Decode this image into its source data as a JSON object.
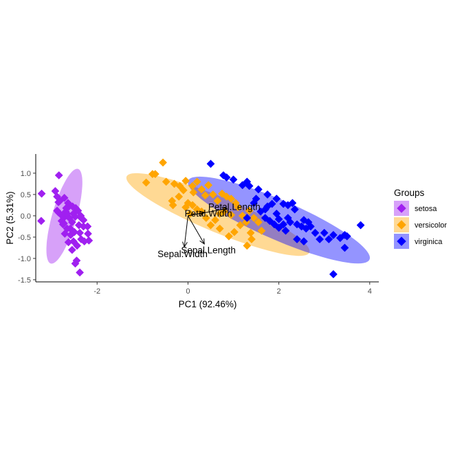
{
  "chart_data": {
    "type": "scatter",
    "subtype": "pca-biplot",
    "title": "",
    "xlabel": "PC1 (92.46%)",
    "ylabel": "PC2 (5.31%)",
    "xlim": [
      -3.35,
      4.2
    ],
    "ylim": [
      -1.55,
      1.45
    ],
    "xticks": [
      -2,
      0,
      2,
      4
    ],
    "xtick_labels": [
      "-2",
      "0",
      "2",
      "4"
    ],
    "yticks": [
      -1.5,
      -1.0,
      -0.5,
      0.0,
      0.5,
      1.0
    ],
    "ytick_labels": [
      "-1.5",
      "-1.0",
      "-0.5",
      "0.0",
      "0.5",
      "1.0"
    ],
    "grid": false,
    "legend": {
      "title": "Groups",
      "position": "right",
      "entries": [
        "setosa",
        "versicolor",
        "virginica"
      ]
    },
    "series": [
      {
        "name": "setosa",
        "color": "#A020F0",
        "ellipse": {
          "cx": -2.72,
          "cy": -0.01,
          "rx": 1.15,
          "ry": 0.27,
          "angle_deg": 75
        },
        "points": [
          [
            -2.84,
            0.95
          ],
          [
            -3.22,
            0.52
          ],
          [
            -3.23,
            -0.12
          ],
          [
            -2.92,
            0.58
          ],
          [
            -2.88,
            0.45
          ],
          [
            -2.82,
            0.35
          ],
          [
            -2.72,
            0.42
          ],
          [
            -2.62,
            0.22
          ],
          [
            -2.68,
            0.18
          ],
          [
            -2.88,
            0.12
          ],
          [
            -2.85,
            0.32
          ],
          [
            -2.78,
            -0.12
          ],
          [
            -2.75,
            -0.2
          ],
          [
            -2.69,
            0.1
          ],
          [
            -2.52,
            0.05
          ],
          [
            -2.48,
            -0.02
          ],
          [
            -2.72,
            -0.03
          ],
          [
            -2.61,
            -0.05
          ],
          [
            -2.55,
            -0.15
          ],
          [
            -2.42,
            0.12
          ],
          [
            -2.35,
            -0.05
          ],
          [
            -2.4,
            -0.22
          ],
          [
            -2.5,
            -0.38
          ],
          [
            -2.3,
            -0.25
          ],
          [
            -2.38,
            -0.4
          ],
          [
            -2.35,
            -0.55
          ],
          [
            -2.52,
            -0.6
          ],
          [
            -2.63,
            -0.62
          ],
          [
            -2.55,
            -0.8
          ],
          [
            -2.45,
            -1.05
          ],
          [
            -2.48,
            -1.12
          ],
          [
            -2.38,
            -1.33
          ],
          [
            -2.28,
            -0.6
          ],
          [
            -2.2,
            -0.42
          ],
          [
            -2.18,
            -0.58
          ],
          [
            -2.66,
            -0.3
          ],
          [
            -2.71,
            -0.42
          ],
          [
            -2.59,
            -0.3
          ],
          [
            -2.77,
            0.0
          ],
          [
            -2.47,
            0.18
          ],
          [
            -2.21,
            -0.25
          ],
          [
            -2.3,
            -0.1
          ],
          [
            -2.64,
            0.3
          ],
          [
            -2.85,
            0.08
          ],
          [
            -2.58,
            -0.45
          ],
          [
            -2.44,
            -0.7
          ],
          [
            -2.73,
            -0.18
          ],
          [
            -2.54,
            0.22
          ],
          [
            -2.66,
            0.05
          ],
          [
            -2.36,
            0.0
          ]
        ]
      },
      {
        "name": "versicolor",
        "color": "#FFA500",
        "ellipse": {
          "cx": 0.66,
          "cy": 0.03,
          "rx": 2.2,
          "ry": 0.41,
          "angle_deg": -24
        },
        "points": [
          [
            -0.55,
            1.25
          ],
          [
            -0.78,
            0.98
          ],
          [
            -0.72,
            0.98
          ],
          [
            -0.92,
            0.78
          ],
          [
            -0.48,
            0.8
          ],
          [
            -0.3,
            0.75
          ],
          [
            -0.05,
            0.82
          ],
          [
            -0.18,
            0.7
          ],
          [
            -0.1,
            0.6
          ],
          [
            0.1,
            0.7
          ],
          [
            0.2,
            0.8
          ],
          [
            0.12,
            0.55
          ],
          [
            0.3,
            0.62
          ],
          [
            0.45,
            0.72
          ],
          [
            0.55,
            0.5
          ],
          [
            0.38,
            0.48
          ],
          [
            0.65,
            0.35
          ],
          [
            0.75,
            0.52
          ],
          [
            0.85,
            0.45
          ],
          [
            0.95,
            0.4
          ],
          [
            1.05,
            0.3
          ],
          [
            1.1,
            0.2
          ],
          [
            0.8,
            0.1
          ],
          [
            0.7,
            0.05
          ],
          [
            0.95,
            0.02
          ],
          [
            1.2,
            0.0
          ],
          [
            1.35,
            0.12
          ],
          [
            1.28,
            -0.15
          ],
          [
            1.45,
            -0.05
          ],
          [
            1.55,
            -0.15
          ],
          [
            1.62,
            -0.35
          ],
          [
            1.38,
            -0.4
          ],
          [
            1.02,
            -0.38
          ],
          [
            1.3,
            -0.7
          ],
          [
            1.4,
            -0.55
          ],
          [
            0.9,
            -0.48
          ],
          [
            0.7,
            -0.3
          ],
          [
            0.5,
            -0.22
          ],
          [
            0.4,
            -0.05
          ],
          [
            0.3,
            0.1
          ],
          [
            0.2,
            0.15
          ],
          [
            0.1,
            0.25
          ],
          [
            0.05,
            0.05
          ],
          [
            -0.05,
            0.2
          ],
          [
            -0.35,
            0.35
          ],
          [
            -0.33,
            0.25
          ],
          [
            0.0,
            0.3
          ],
          [
            0.6,
            -0.1
          ],
          [
            1.15,
            -0.22
          ],
          [
            -0.2,
            0.45
          ]
        ]
      },
      {
        "name": "virginica",
        "color": "#0000FF",
        "ellipse": {
          "cx": 2.0,
          "cy": -0.1,
          "rx": 2.2,
          "ry": 0.46,
          "angle_deg": -25
        },
        "points": [
          [
            0.5,
            1.22
          ],
          [
            0.78,
            0.95
          ],
          [
            0.85,
            0.9
          ],
          [
            1.0,
            0.85
          ],
          [
            1.2,
            0.72
          ],
          [
            1.3,
            0.8
          ],
          [
            1.35,
            0.7
          ],
          [
            1.55,
            0.62
          ],
          [
            1.75,
            0.5
          ],
          [
            1.85,
            0.28
          ],
          [
            1.95,
            0.4
          ],
          [
            2.1,
            0.28
          ],
          [
            2.2,
            0.25
          ],
          [
            2.3,
            0.3
          ],
          [
            2.35,
            0.15
          ],
          [
            1.6,
            0.1
          ],
          [
            1.7,
            -0.05
          ],
          [
            1.8,
            -0.12
          ],
          [
            1.9,
            -0.2
          ],
          [
            2.0,
            -0.08
          ],
          [
            2.1,
            -0.2
          ],
          [
            2.15,
            -0.35
          ],
          [
            2.25,
            -0.15
          ],
          [
            2.4,
            -0.2
          ],
          [
            2.5,
            -0.25
          ],
          [
            2.55,
            -0.1
          ],
          [
            2.6,
            -0.3
          ],
          [
            2.7,
            -0.25
          ],
          [
            2.8,
            -0.4
          ],
          [
            2.9,
            -0.55
          ],
          [
            3.0,
            -0.4
          ],
          [
            3.1,
            -0.55
          ],
          [
            3.2,
            -0.45
          ],
          [
            3.35,
            -0.52
          ],
          [
            3.45,
            -0.45
          ],
          [
            3.5,
            -0.48
          ],
          [
            3.8,
            -0.22
          ],
          [
            3.45,
            -0.75
          ],
          [
            3.2,
            -1.37
          ],
          [
            2.55,
            -0.6
          ],
          [
            2.4,
            -0.55
          ],
          [
            2.0,
            -0.28
          ],
          [
            1.75,
            0.22
          ],
          [
            1.5,
            0.4
          ],
          [
            1.45,
            0.3
          ],
          [
            1.3,
            -0.05
          ],
          [
            1.95,
            0.05
          ],
          [
            2.2,
            -0.05
          ],
          [
            1.7,
            0.15
          ],
          [
            2.65,
            -0.15
          ]
        ]
      }
    ],
    "loadings": [
      {
        "name": "Petal.Length",
        "x": 0.86,
        "y": 0.17,
        "label_x": 1.02,
        "label_y": 0.19
      },
      {
        "name": "Petal.Width",
        "x": 0.36,
        "y": 0.08,
        "label_x": 0.45,
        "label_y": 0.04
      },
      {
        "name": "Sepal.Length",
        "x": 0.36,
        "y": -0.66,
        "label_x": 0.45,
        "label_y": -0.82
      },
      {
        "name": "Sepal.Width",
        "x": -0.08,
        "y": -0.73,
        "label_x": -0.12,
        "label_y": -0.91
      }
    ]
  }
}
